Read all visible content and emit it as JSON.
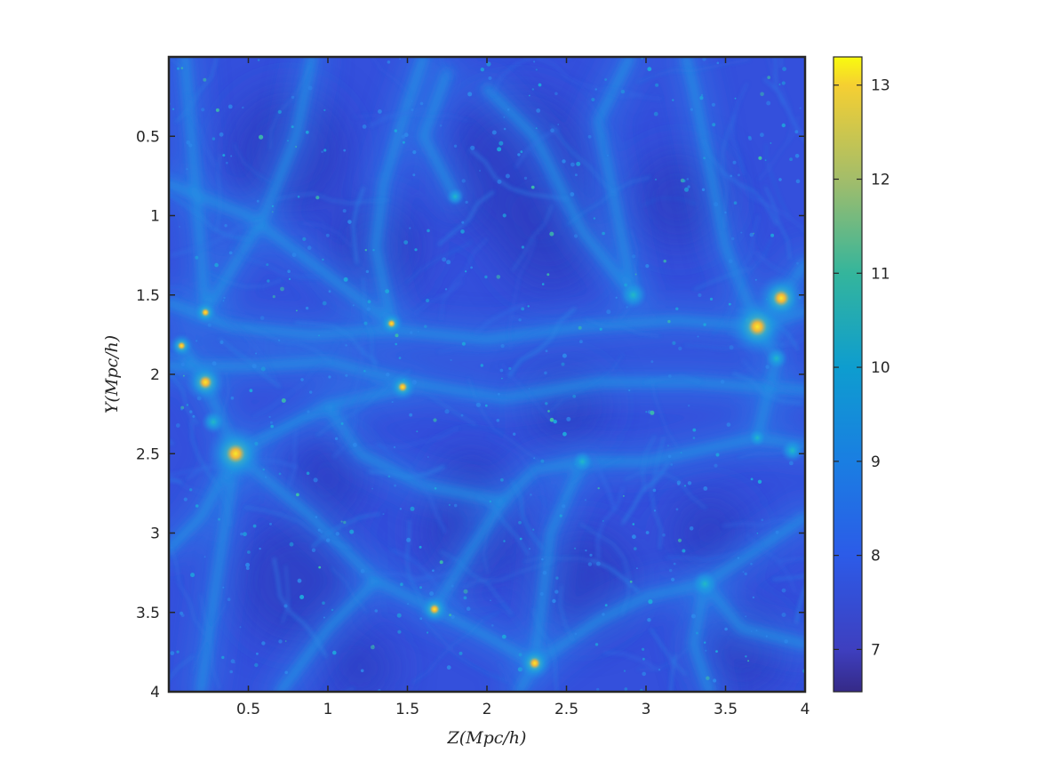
{
  "chart_data": {
    "type": "heatmap",
    "title": "",
    "xlabel": "Z(Mpc/h)",
    "ylabel": "Y(Mpc/h)",
    "xlim": [
      0,
      4
    ],
    "ylim": [
      0,
      4
    ],
    "y_direction": "reversed (0 at top, 4 at bottom)",
    "x_ticks": [
      "0.5",
      "1",
      "1.5",
      "2",
      "2.5",
      "3",
      "3.5",
      "4"
    ],
    "y_ticks": [
      "0.5",
      "1",
      "1.5",
      "2",
      "2.5",
      "3",
      "3.5",
      "4"
    ],
    "x_tick_values": [
      0.5,
      1,
      1.5,
      2,
      2.5,
      3,
      3.5,
      4
    ],
    "y_tick_values": [
      0.5,
      1,
      1.5,
      2,
      2.5,
      3,
      3.5,
      4
    ],
    "colorbar": {
      "range": [
        6.55,
        13.3
      ],
      "ticks": [
        "7",
        "8",
        "9",
        "10",
        "11",
        "12",
        "13"
      ],
      "tick_values": [
        7,
        8,
        9,
        10,
        11,
        12,
        13
      ],
      "colormap": "parula"
    },
    "grid": false,
    "description_features": {
      "bright_clumps": [
        {
          "z": 0.42,
          "y": 2.5,
          "value": 12.6
        },
        {
          "z": 3.7,
          "y": 1.7,
          "value": 12.6
        },
        {
          "z": 3.85,
          "y": 1.52,
          "value": 12.2
        },
        {
          "z": 0.23,
          "y": 2.05,
          "value": 11.8
        },
        {
          "z": 2.3,
          "y": 3.82,
          "value": 11.5
        },
        {
          "z": 1.67,
          "y": 3.48,
          "value": 11.3
        },
        {
          "z": 1.47,
          "y": 2.08,
          "value": 11.2
        },
        {
          "z": 0.23,
          "y": 1.61,
          "value": 11.0
        },
        {
          "z": 1.4,
          "y": 1.68,
          "value": 11.0
        },
        {
          "z": 0.08,
          "y": 1.82,
          "value": 11.0
        },
        {
          "z": 3.37,
          "y": 3.32,
          "value": 10.8
        },
        {
          "z": 2.92,
          "y": 1.5,
          "value": 10.8
        },
        {
          "z": 0.28,
          "y": 2.3,
          "value": 10.5
        },
        {
          "z": 3.92,
          "y": 2.48,
          "value": 10.5
        },
        {
          "z": 3.82,
          "y": 1.9,
          "value": 10.4
        },
        {
          "z": 2.6,
          "y": 2.55,
          "value": 10.3
        },
        {
          "z": 1.8,
          "y": 0.88,
          "value": 10.0
        },
        {
          "z": 3.7,
          "y": 2.4,
          "value": 10.0
        }
      ]
    }
  }
}
